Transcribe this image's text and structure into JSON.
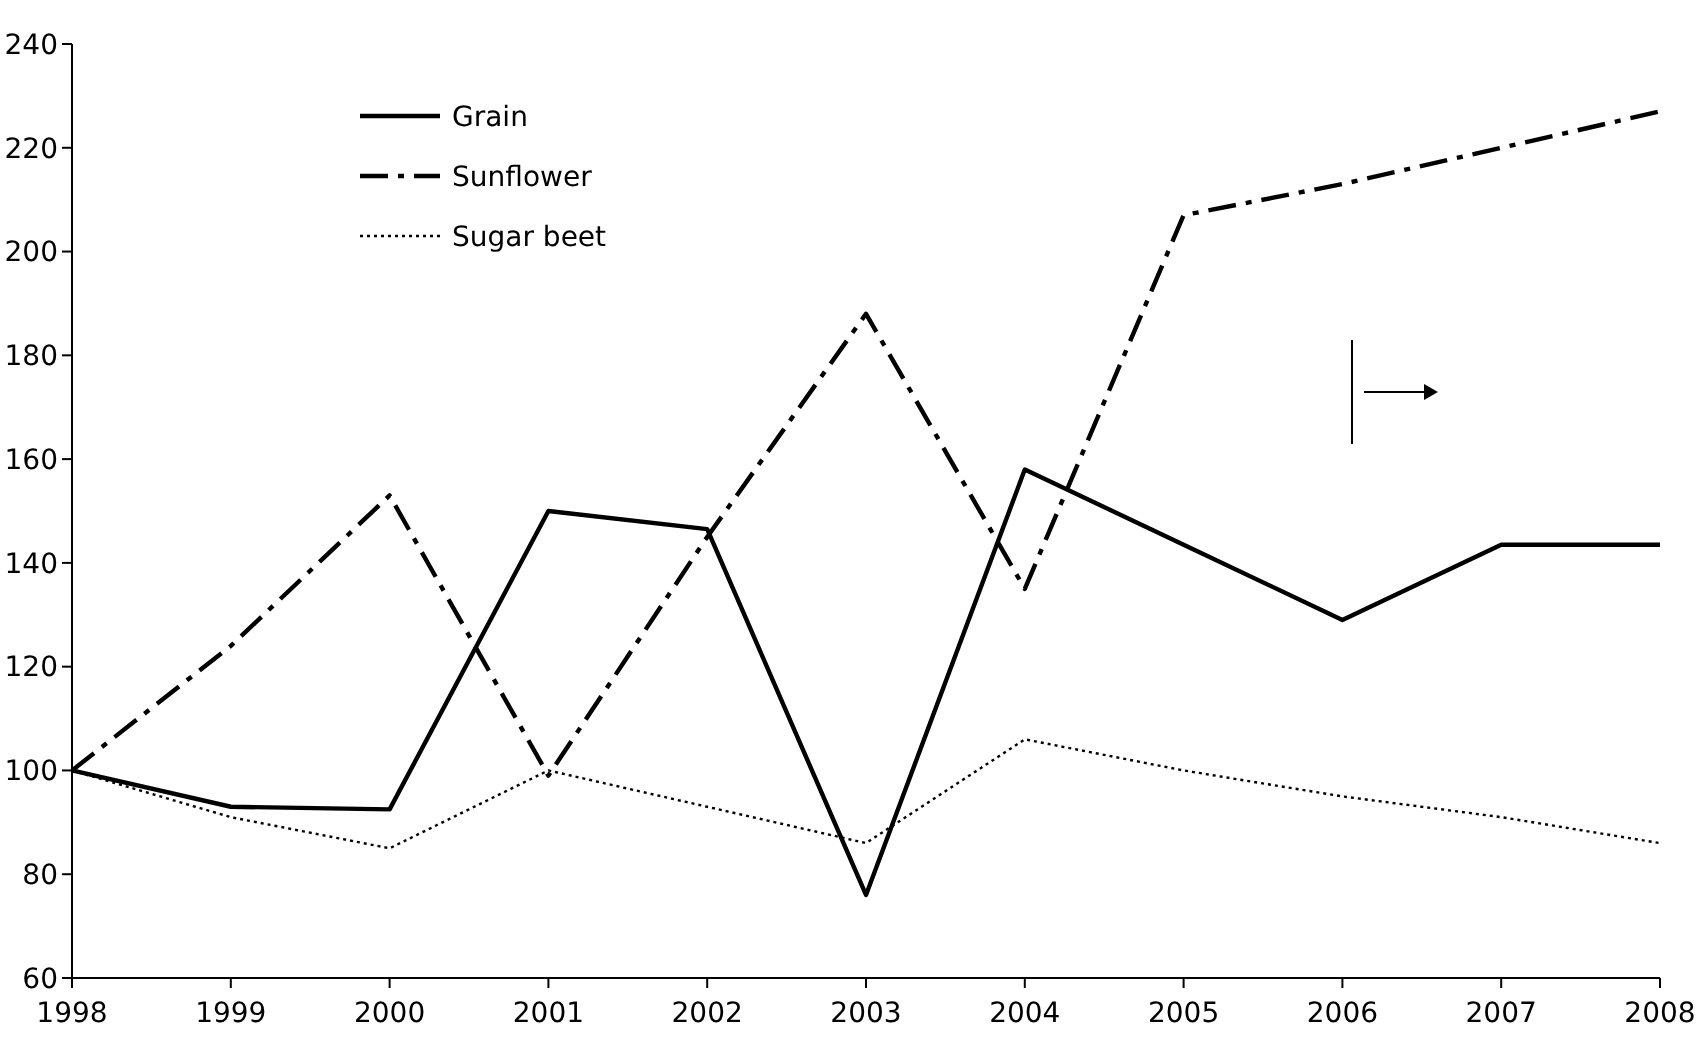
{
  "chart_data": {
    "type": "line",
    "x": [
      1998,
      1999,
      2000,
      2001,
      2002,
      2003,
      2004,
      2005,
      2006,
      2007,
      2008
    ],
    "series": [
      {
        "name": "Grain",
        "color": "#000000",
        "line_style": "solid",
        "values": [
          100,
          93,
          92.5,
          150,
          146.5,
          76,
          158,
          143.5,
          129,
          143.5,
          143.5
        ]
      },
      {
        "name": "Sunflower",
        "color": "#000000",
        "line_style": "dashed",
        "values": [
          100,
          124,
          153,
          99,
          145,
          188,
          135,
          207,
          213,
          220,
          227
        ]
      },
      {
        "name": "Sugar beet",
        "color": "#000000",
        "line_style": "dotted",
        "values": [
          100,
          91,
          85,
          100,
          93,
          86,
          106,
          100,
          95,
          91,
          86
        ]
      }
    ],
    "xlim": [
      1998,
      2008
    ],
    "xticks": [
      1998,
      1999,
      2000,
      2001,
      2002,
      2003,
      2004,
      2005,
      2006,
      2007,
      2008
    ],
    "ylim": [
      60,
      240
    ],
    "yticks": [
      60,
      80,
      100,
      120,
      140,
      160,
      180,
      200,
      220,
      240
    ],
    "grid": false,
    "legend": "top left",
    "marker": "none"
  }
}
